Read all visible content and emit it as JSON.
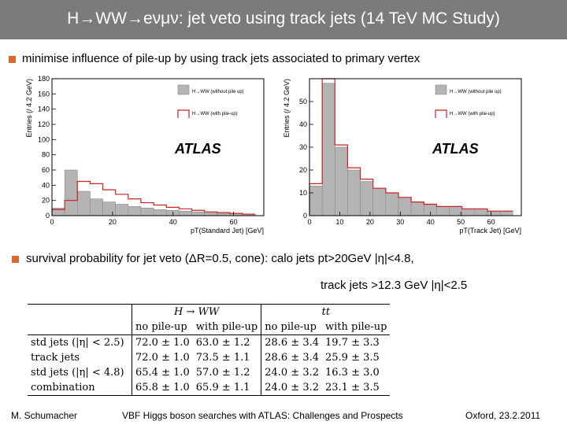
{
  "title": "H→WW→eνμν: jet veto using track jets (14 TeV MC Study)",
  "bullet1": "minimise influence of pile-up by using track jets associated to primary vertex",
  "bullet2": "survival probability for jet veto (ΔR=0.5, cone): calo jets pt>20GeV |η|<4.8,",
  "bullet2_cont": "track jets >12.3 GeV |η|<2.5",
  "colors": {
    "accent": "#e0662e",
    "title_bg": "#7b7b7b",
    "hist_fill": "#b4b4b4",
    "hist_line": "#cc2222"
  },
  "chart_data": [
    {
      "type": "bar",
      "xlabel": "pT(Standard Jet) [GeV]",
      "ylabel": "Entries (/ 4.2 GeV)",
      "watermark": "ATLAS",
      "xlim": [
        0,
        70
      ],
      "ylim": [
        0,
        180
      ],
      "xticks": [
        0,
        20,
        40,
        60
      ],
      "yticks": [
        0,
        20,
        40,
        60,
        80,
        100,
        120,
        140,
        160,
        180
      ],
      "bin_width": 4.2,
      "legend": [
        "H→WW (without pile up)",
        "H→WW (with pile-up)"
      ],
      "series": [
        {
          "name": "H→WW (without pile up)",
          "style": "filled",
          "values": [
            10,
            60,
            32,
            22,
            18,
            15,
            12,
            10,
            8,
            7,
            6,
            5,
            4,
            3,
            3,
            2
          ]
        },
        {
          "name": "H→WW (with pile-up)",
          "style": "line",
          "values": [
            8,
            20,
            45,
            42,
            34,
            28,
            22,
            17,
            14,
            11,
            9,
            7,
            5,
            4,
            3,
            2
          ]
        }
      ]
    },
    {
      "type": "bar",
      "xlabel": "pT(Track Jet) [GeV]",
      "ylabel": "Entries (/ 4.2 GeV)",
      "watermark": "ATLAS",
      "xlim": [
        0,
        70
      ],
      "ylim": [
        0,
        60
      ],
      "xticks": [
        0,
        10,
        20,
        30,
        40,
        50,
        60
      ],
      "yticks": [
        0,
        10,
        20,
        30,
        40,
        50
      ],
      "bin_width": 4.2,
      "legend": [
        "H→WW (without pile up)",
        "H→WW (with pile-up)"
      ],
      "series": [
        {
          "name": "H→WW (without pile up)",
          "style": "filled",
          "values": [
            13,
            58,
            30,
            20,
            15,
            12,
            10,
            8,
            6,
            5,
            4,
            4,
            3,
            3,
            2,
            2
          ]
        },
        {
          "name": "H→WW (with pile-up)",
          "style": "line",
          "values": [
            14,
            60,
            31,
            21,
            16,
            12,
            10,
            8,
            6,
            5,
            4,
            4,
            3,
            3,
            2,
            2
          ]
        }
      ]
    }
  ],
  "table": {
    "groups": [
      "H → WW",
      "tt"
    ],
    "subheaders": [
      "no pile-up",
      "with pile-up",
      "no pile-up",
      "with pile-up"
    ],
    "rows": [
      {
        "label": "std jets (|η| < 2.5)",
        "cells": [
          "72.0 ± 1.0",
          "63.0 ± 1.2",
          "28.6 ± 3.4",
          "19.7 ± 3.3"
        ]
      },
      {
        "label": "track jets",
        "cells": [
          "72.0 ± 1.0",
          "73.5 ± 1.1",
          "28.6 ± 3.4",
          "25.9 ± 3.5"
        ]
      },
      {
        "label": "std jets (|η| < 4.8)",
        "cells": [
          "65.4 ± 1.0",
          "57.0 ± 1.2",
          "24.0 ± 3.2",
          "16.3 ± 3.0"
        ]
      },
      {
        "label": "combination",
        "cells": [
          "65.8 ± 1.0",
          "65.9 ± 1.1",
          "24.0 ± 3.2",
          "23.1 ± 3.5"
        ]
      }
    ]
  },
  "footer": {
    "left": "M. Schumacher",
    "center": "VBF Higgs boson searches with ATLAS: Challenges and Prospects",
    "right": "Oxford, 23.2.2011"
  }
}
